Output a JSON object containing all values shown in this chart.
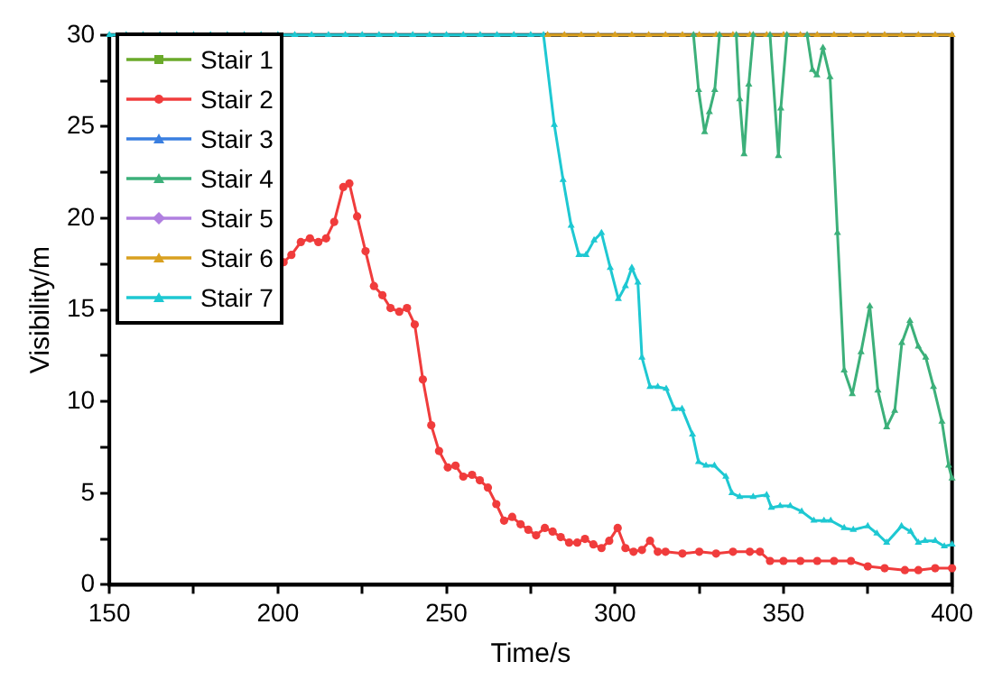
{
  "chart_data": {
    "type": "line",
    "xlabel": "Time/s",
    "ylabel": "Visibility/m",
    "xlim": [
      150,
      400
    ],
    "ylim": [
      0,
      30
    ],
    "xticks": [
      150,
      {
        "value": 175,
        "label": null
      },
      200,
      {
        "value": 225,
        "label": null
      },
      250,
      {
        "value": 275,
        "label": null
      },
      300,
      {
        "value": 325,
        "label": null
      },
      350,
      {
        "value": 375,
        "label": null
      },
      400
    ],
    "yticks": [
      0,
      {
        "value": 2.5,
        "label": null
      },
      5,
      {
        "value": 7.5,
        "label": null
      },
      10,
      {
        "value": 12.5,
        "label": null
      },
      15,
      {
        "value": 17.5,
        "label": null
      },
      20,
      {
        "value": 22.5,
        "label": null
      },
      25,
      {
        "value": 27.5,
        "label": null
      },
      30
    ],
    "grid": false,
    "legend": "top left",
    "series": [
      {
        "name": "Stair 1",
        "color": "#6aaa2a",
        "marker": "square"
      },
      {
        "name": "Stair 2",
        "color": "#f03c3c",
        "marker": "circle",
        "x": [
          201.7,
          204,
          206.8,
          209.5,
          212,
          214.3,
          216.7,
          219.4,
          221.2,
          223.5,
          226,
          228.5,
          231,
          233.4,
          236,
          238.3,
          240.6,
          243,
          245.5,
          247.8,
          250.4,
          252.7,
          255,
          257.6,
          259.9,
          262.3,
          264.8,
          267.1,
          269.5,
          272,
          274.3,
          276.6,
          279.2,
          281.5,
          283.9,
          286.4,
          288.8,
          291.1,
          293.6,
          296,
          298.3,
          300.8,
          303.1,
          305.5,
          308,
          310.4,
          312.7,
          315,
          320,
          325,
          330,
          335,
          340,
          343,
          346,
          350,
          355,
          360,
          365,
          370,
          375,
          380,
          386,
          390,
          395,
          400
        ],
        "values": [
          17.6,
          18,
          18.7,
          18.9,
          18.7,
          18.9,
          19.8,
          21.7,
          21.9,
          20.1,
          18.2,
          16.3,
          15.8,
          15.1,
          14.9,
          15.1,
          14.2,
          11.2,
          8.7,
          7.3,
          6.4,
          6.5,
          5.9,
          6.0,
          5.7,
          5.3,
          4.4,
          3.5,
          3.7,
          3.3,
          3.0,
          2.7,
          3.1,
          2.9,
          2.6,
          2.3,
          2.3,
          2.5,
          2.2,
          2.0,
          2.4,
          3.1,
          2.0,
          1.8,
          1.9,
          2.4,
          1.8,
          1.8,
          1.7,
          1.8,
          1.7,
          1.8,
          1.8,
          1.8,
          1.3,
          1.3,
          1.3,
          1.3,
          1.3,
          1.3,
          1.0,
          0.9,
          0.8,
          0.8,
          0.9,
          0.9
        ]
      },
      {
        "name": "Stair 3",
        "color": "#3a7fe0",
        "marker": "triangle"
      },
      {
        "name": "Stair 4",
        "color": "#3cb07a",
        "marker": "triangle",
        "x": [
          323.3,
          324.8,
          326.6,
          328,
          329.6,
          331,
          333,
          336,
          337,
          338.3,
          339.7,
          341,
          343,
          346,
          348.5,
          349.2,
          351,
          354,
          357,
          358.6,
          359.9,
          361.7,
          363.8,
          366,
          368,
          370.4,
          373,
          375.6,
          378,
          380.6,
          383,
          385.1,
          387.5,
          390,
          392.2,
          394.5,
          397,
          399,
          400
        ],
        "values": [
          30,
          27.0,
          24.7,
          25.8,
          27.0,
          30,
          null,
          30,
          26.5,
          23.5,
          27.3,
          30,
          null,
          30,
          23.4,
          26.0,
          30,
          null,
          30,
          28.1,
          27.8,
          29.3,
          27.7,
          19.2,
          11.7,
          10.4,
          12.7,
          15.2,
          10.6,
          8.6,
          9.5,
          13.2,
          14.4,
          13.0,
          12.4,
          10.8,
          8.9,
          6.5,
          5.8
        ]
      },
      {
        "name": "Stair 5",
        "color": "#b07fe0",
        "marker": "diamond"
      },
      {
        "name": "Stair 6",
        "color": "#d9a020",
        "marker": "triangle",
        "x": [
          280,
          285,
          290,
          295,
          300,
          305,
          310,
          315,
          320,
          325,
          330,
          335,
          340,
          345,
          350,
          355,
          360,
          365,
          370,
          375,
          380,
          385,
          390,
          395,
          400
        ],
        "values": [
          30,
          30,
          30,
          30,
          30,
          30,
          30,
          30,
          30,
          30,
          30,
          30,
          30,
          30,
          30,
          30,
          30,
          30,
          30,
          30,
          30,
          30,
          30,
          30,
          30
        ]
      },
      {
        "name": "Stair 7",
        "color": "#1ec8d2",
        "marker": "triangle",
        "x": [
          150,
          155,
          160,
          165,
          170,
          175,
          180,
          185,
          190,
          195,
          200,
          205,
          210,
          215,
          220,
          225,
          230,
          235,
          240,
          245,
          250,
          255,
          260,
          265,
          270,
          275,
          278.8,
          282,
          284.6,
          287,
          289.3,
          291.4,
          293.8,
          296,
          298.6,
          301,
          303.1,
          305,
          306.8,
          308,
          310.4,
          312.7,
          315.2,
          317.6,
          319.9,
          323,
          324.8,
          327,
          329.5,
          332.9,
          334.7,
          337,
          341,
          345,
          346.4,
          349,
          352,
          355.4,
          359,
          362,
          364,
          368,
          370.7,
          375,
          377.7,
          380.6,
          385,
          387.7,
          390,
          392,
          395,
          397.7,
          400
        ],
        "values": [
          30,
          30,
          30,
          30,
          30,
          30,
          30,
          30,
          30,
          30,
          30,
          30,
          30,
          30,
          30,
          30,
          30,
          30,
          30,
          30,
          30,
          30,
          30,
          30,
          30,
          30,
          30,
          25.1,
          22.1,
          19.6,
          18.0,
          18.0,
          18.8,
          19.2,
          17.3,
          15.6,
          16.3,
          17.3,
          16.5,
          12.4,
          10.8,
          10.8,
          10.7,
          9.6,
          9.6,
          8.2,
          6.7,
          6.5,
          6.5,
          5.9,
          5.0,
          4.8,
          4.8,
          4.9,
          4.2,
          4.3,
          4.3,
          4.0,
          3.5,
          3.5,
          3.5,
          3.1,
          3.0,
          3.2,
          2.8,
          2.3,
          3.2,
          2.9,
          2.3,
          2.4,
          2.4,
          2.1,
          2.2
        ]
      }
    ]
  }
}
